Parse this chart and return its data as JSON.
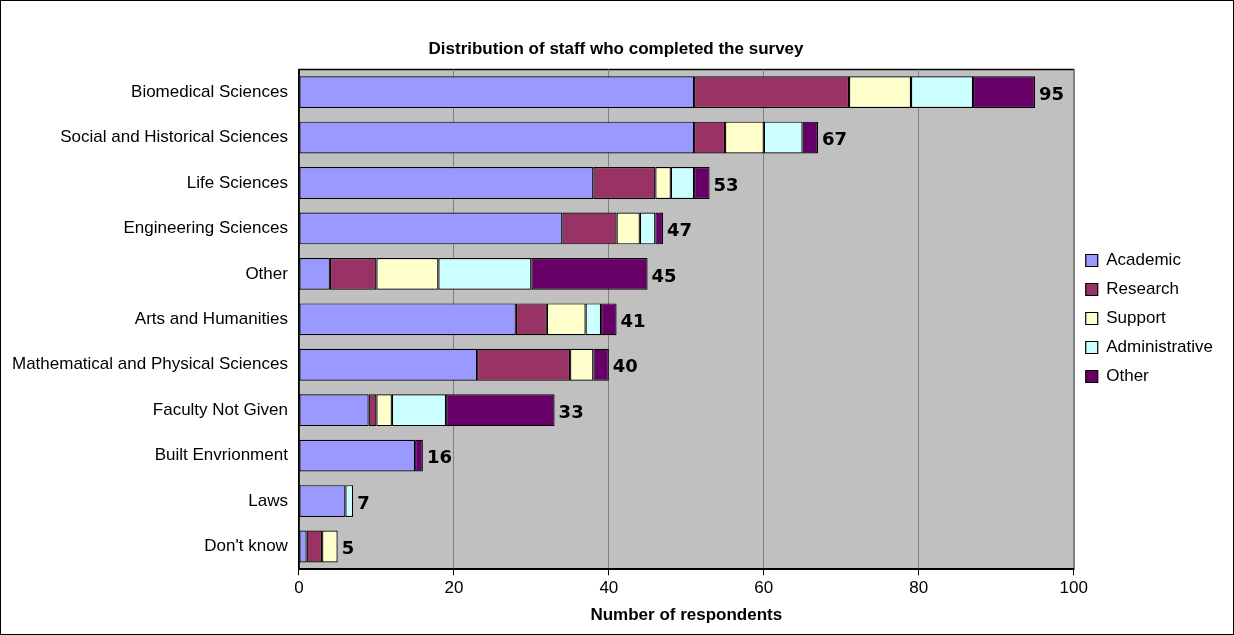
{
  "chart_data": {
    "type": "bar",
    "orientation": "horizontal",
    "stacked": true,
    "title": "Distribution of staff who completed the survey",
    "xlabel": "Number of respondents",
    "categories": [
      "Biomedical Sciences",
      "Social and Historical Sciences",
      "Life Sciences",
      "Engineering Sciences",
      "Other",
      "Arts and Humanities",
      "Mathematical and Physical Sciences",
      "Faculty Not Given",
      "Built Envrionment",
      "Laws",
      "Don't know"
    ],
    "series": [
      {
        "name": "Academic",
        "color": "#9999ff",
        "values": [
          51,
          51,
          38,
          34,
          4,
          28,
          23,
          9,
          15,
          6,
          1
        ]
      },
      {
        "name": "Research",
        "color": "#993366",
        "values": [
          20,
          4,
          8,
          7,
          6,
          4,
          12,
          1,
          0,
          0,
          2
        ]
      },
      {
        "name": "Support",
        "color": "#ffffcc",
        "values": [
          8,
          5,
          2,
          3,
          8,
          5,
          3,
          2,
          0,
          0,
          2
        ]
      },
      {
        "name": "Administrative",
        "color": "#ccffff",
        "values": [
          8,
          5,
          3,
          2,
          12,
          2,
          0,
          7,
          0,
          1,
          0
        ]
      },
      {
        "name": "Other",
        "color": "#660066",
        "values": [
          8,
          2,
          2,
          1,
          15,
          2,
          2,
          14,
          1,
          0,
          0
        ]
      }
    ],
    "totals": [
      "95",
      "67",
      "53",
      "47",
      "45",
      "41",
      "40",
      "33",
      "16",
      "7",
      "5"
    ],
    "xlim": [
      0,
      100
    ],
    "xticks": [
      0,
      20,
      40,
      60,
      80,
      100
    ],
    "grid": "x",
    "legend": "right"
  }
}
